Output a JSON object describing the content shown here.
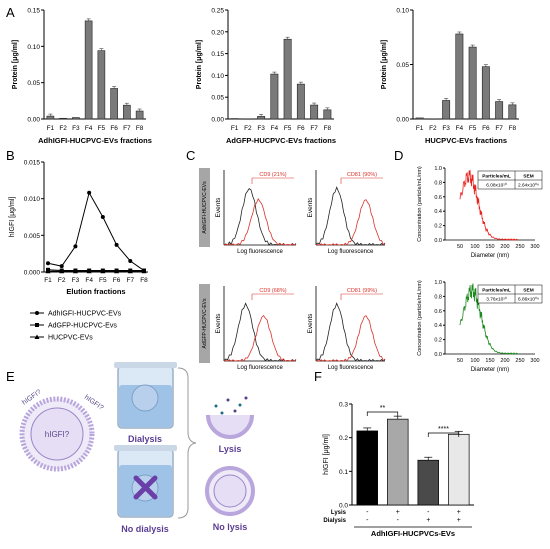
{
  "panel_letters": {
    "a": "A",
    "b": "B",
    "c": "C",
    "d": "D",
    "e": "E",
    "f": "F"
  },
  "chart_data": [
    {
      "id": "A1",
      "type": "bar",
      "ylabel": "Protein [μg/ml]",
      "xlabel": "AdhIGFI-HUCPVC-EVs fractions",
      "categories": [
        "F1",
        "F2",
        "F3",
        "F4",
        "F5",
        "F6",
        "F7",
        "F8"
      ],
      "values": [
        0.004,
        0.001,
        0.002,
        0.135,
        0.094,
        0.042,
        0.019,
        0.011
      ],
      "ylim": [
        0,
        0.15
      ],
      "yticks": [
        "0.00",
        "0.05",
        "0.10",
        "0.15"
      ],
      "ytick_values": [
        0,
        0.05,
        0.1,
        0.15
      ]
    },
    {
      "id": "A2",
      "type": "bar",
      "ylabel": "Protein [μg/ml]",
      "xlabel": "AdGFP-HUCPVC-EVs fractions",
      "categories": [
        "F1",
        "F2",
        "F3",
        "F4",
        "F5",
        "F6",
        "F7",
        "F8"
      ],
      "values": [
        0.001,
        0.0,
        0.006,
        0.103,
        0.183,
        0.08,
        0.032,
        0.021
      ],
      "ylim": [
        0,
        0.25
      ],
      "yticks": [
        "0.00",
        "0.05",
        "0.10",
        "0.15",
        "0.20",
        "0.25"
      ],
      "ytick_values": [
        0,
        0.05,
        0.1,
        0.15,
        0.2,
        0.25
      ]
    },
    {
      "id": "A3",
      "type": "bar",
      "ylabel": "Protein [μg/ml]",
      "xlabel": "HUCPVC-EVs fractions",
      "categories": [
        "F1",
        "F2",
        "F3",
        "F4",
        "F5",
        "F6",
        "F7",
        "F8"
      ],
      "values": [
        0.001,
        0.0,
        0.017,
        0.078,
        0.066,
        0.048,
        0.016,
        0.013
      ],
      "ylim": [
        0,
        0.1
      ],
      "yticks": [
        "0.00",
        "0.05",
        "0.10"
      ],
      "ytick_values": [
        0,
        0.05,
        0.1
      ]
    },
    {
      "id": "B",
      "type": "line",
      "ylabel": "hIGFI [μg/ml]",
      "xlabel": "Elution fractions",
      "categories": [
        "F1",
        "F2",
        "F3",
        "F4",
        "F5",
        "F6",
        "F7",
        "F8"
      ],
      "ylim": [
        0,
        0.015
      ],
      "yticks": [
        "0.000",
        "0.005",
        "0.010",
        "0.015"
      ],
      "ytick_values": [
        0,
        0.005,
        0.01,
        0.015
      ],
      "series": [
        {
          "name": "AdhIGFI-HUCPVC-EVs",
          "marker": "circle",
          "values": [
            0.0012,
            0.0008,
            0.0035,
            0.0108,
            0.0075,
            0.0037,
            0.0015,
            0.0002
          ]
        },
        {
          "name": "AdGFP-HUCPVC-Evs",
          "marker": "square",
          "values": [
            0.0003,
            0.0002,
            0.0002,
            0.0002,
            0.0002,
            0.0002,
            0.0002,
            0.0002
          ]
        },
        {
          "name": "HUCPVC-EVs",
          "marker": "triangle",
          "values": [
            0.0001,
            0.0001,
            0.0001,
            0.0001,
            0.0001,
            0.0001,
            0.0001,
            0.0001
          ]
        }
      ]
    },
    {
      "id": "C",
      "type": "histogram",
      "ylabel": "Events",
      "xlabel": "Log fluorescence",
      "rows": [
        {
          "row_label": "AdhIGFI-HUCPVC-EVs",
          "panels": [
            {
              "marker_label": "CD9 (21%)"
            },
            {
              "marker_label": "CD81 (90%)"
            }
          ]
        },
        {
          "row_label": "AdGFP-HUCPVC-EVs",
          "panels": [
            {
              "marker_label": "CD9 (68%)"
            },
            {
              "marker_label": "CD81 (99%)"
            }
          ]
        }
      ]
    },
    {
      "id": "D1",
      "type": "line",
      "color": "#e8231f",
      "ylabel": "Concentration (particle/mL/nm)",
      "xlabel": "Diameter (nm)",
      "xlim": [
        0,
        300
      ],
      "xticks": [
        "0",
        "50",
        "100",
        "150",
        "200",
        "250",
        "300"
      ],
      "xtick_values": [
        0,
        50,
        100,
        150,
        200,
        250,
        300
      ],
      "ylim": [
        0,
        1.0
      ],
      "yticks": [
        "0.0",
        "0.2",
        "0.4",
        "0.6",
        "0.8",
        "1.0"
      ],
      "ytick_values": [
        0,
        0.2,
        0.4,
        0.6,
        0.8,
        1.0
      ],
      "table": {
        "headers": [
          "Particles/mL",
          "SEM"
        ],
        "values": [
          "6.08x10¹⁰",
          "2.64x10⁰⁹"
        ]
      }
    },
    {
      "id": "D2",
      "type": "line",
      "color": "#1e8a1e",
      "ylabel": "Concentration (particle/mL/nm)",
      "xlabel": "Diameter (nm)",
      "xlim": [
        0,
        300
      ],
      "xticks": [
        "0",
        "50",
        "100",
        "150",
        "200",
        "250",
        "300"
      ],
      "xtick_values": [
        0,
        50,
        100,
        150,
        200,
        250,
        300
      ],
      "ylim": [
        0,
        1.0
      ],
      "yticks": [
        "0.0",
        "0.2",
        "0.4",
        "0.6",
        "0.8",
        "1.0"
      ],
      "ytick_values": [
        0,
        0.2,
        0.4,
        0.6,
        0.8,
        1.0
      ],
      "table": {
        "headers": [
          "Particles/mL",
          "SEM"
        ],
        "values": [
          "3.76x10¹⁰",
          "6.86x10⁰⁹"
        ]
      }
    },
    {
      "id": "F",
      "type": "bar",
      "ylabel": "hIGFI [μg/ml]",
      "values": [
        0.22,
        0.255,
        0.133,
        0.21
      ],
      "colors": [
        "#000000",
        "#a8a8a8",
        "#4a4a4a",
        "#e8e8e8"
      ],
      "ylim": [
        0,
        0.3
      ],
      "yticks": [
        "0.0",
        "0.1",
        "0.2",
        "0.3"
      ],
      "ytick_values": [
        0,
        0.1,
        0.2,
        0.3
      ],
      "row_labels": [
        "Lysis",
        "Dialysis"
      ],
      "lysis": [
        "-",
        "+",
        "-",
        "+"
      ],
      "dialysis": [
        "-",
        "-",
        "+",
        "+"
      ],
      "significance": [
        "**",
        "****"
      ],
      "group_label": "AdhIGFI-HUCPVCs-EVs"
    }
  ],
  "schematic": {
    "vesicle_center": "hIGFI?",
    "vesicle_side_left": "hIGFI?",
    "vesicle_side_right": "hIGFI?",
    "dialysis": "Dialysis",
    "no_dialysis": "No dialysis",
    "lysis": "Lysis",
    "no_lysis": "No lysis",
    "accent": "#7b5bb5"
  }
}
